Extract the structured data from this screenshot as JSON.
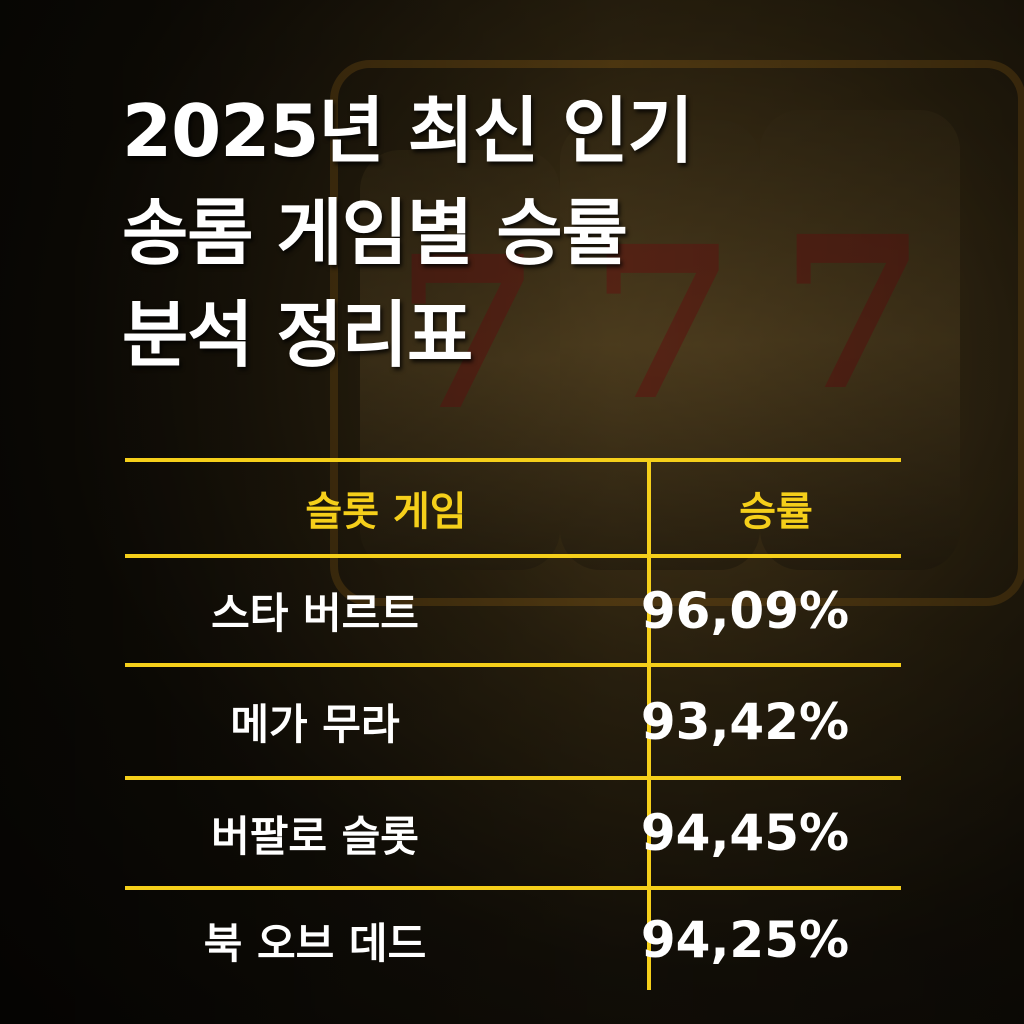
{
  "title": {
    "lines": [
      "2025년 최신 인기",
      "송롬 게임별 승률",
      "분석 정리표"
    ]
  },
  "colors": {
    "accent": "#f5cf1a",
    "text": "#ffffff",
    "background": "#1a140a"
  },
  "table": {
    "headers": [
      "슬롯 게임",
      "승률"
    ],
    "rows": [
      {
        "game": "스타 버르트",
        "rate": "96,09%"
      },
      {
        "game": "메가 무라",
        "rate": "93,42%"
      },
      {
        "game": "버팔로 슬롯",
        "rate": "94,45%"
      },
      {
        "game": "북 오브 데드",
        "rate": "94,25%"
      }
    ]
  }
}
